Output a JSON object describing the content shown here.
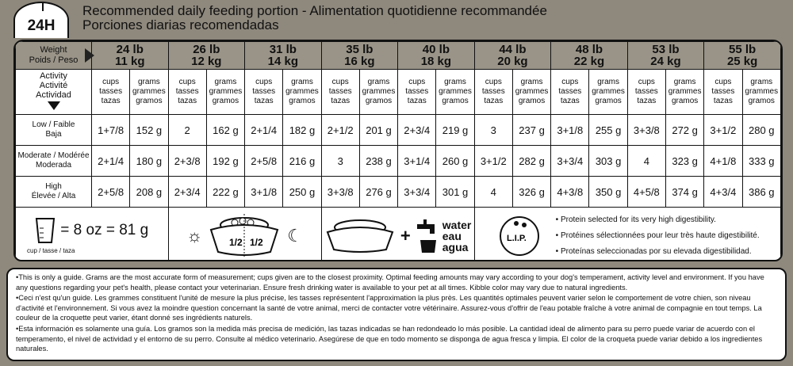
{
  "badge": "24H",
  "title": {
    "line1": "Recommended daily feeding portion - Alimentation quotidienne recommandée",
    "line2": "Porciones diarias recomendadas"
  },
  "weight_label": {
    "line1": "Weight",
    "line2": "Poids / Peso"
  },
  "weights": [
    {
      "lb": "24 lb",
      "kg": "11 kg"
    },
    {
      "lb": "26 lb",
      "kg": "12 kg"
    },
    {
      "lb": "31 lb",
      "kg": "14 kg"
    },
    {
      "lb": "35 lb",
      "kg": "16 kg"
    },
    {
      "lb": "40 lb",
      "kg": "18 kg"
    },
    {
      "lb": "44 lb",
      "kg": "20 kg"
    },
    {
      "lb": "48 lb",
      "kg": "22 kg"
    },
    {
      "lb": "53 lb",
      "kg": "24 kg"
    },
    {
      "lb": "55 lb",
      "kg": "25 kg"
    }
  ],
  "activity_label": {
    "l1": "Activity",
    "l2": "Activité",
    "l3": "Actividad"
  },
  "units": {
    "cups": [
      "cups",
      "tasses",
      "tazas"
    ],
    "grams": [
      "grams",
      "grammes",
      "gramos"
    ]
  },
  "rows": [
    {
      "l1": "Low / Faible",
      "l2": "Baja",
      "values": [
        [
          "1+7/8",
          "152 g"
        ],
        [
          "2",
          "162 g"
        ],
        [
          "2+1/4",
          "182 g"
        ],
        [
          "2+1/2",
          "201 g"
        ],
        [
          "2+3/4",
          "219 g"
        ],
        [
          "3",
          "237 g"
        ],
        [
          "3+1/8",
          "255 g"
        ],
        [
          "3+3/8",
          "272 g"
        ],
        [
          "3+1/2",
          "280 g"
        ]
      ]
    },
    {
      "l1": "Moderate / Modérée",
      "l2": "Moderada",
      "values": [
        [
          "2+1/4",
          "180 g"
        ],
        [
          "2+3/8",
          "192 g"
        ],
        [
          "2+5/8",
          "216 g"
        ],
        [
          "3",
          "238 g"
        ],
        [
          "3+1/4",
          "260 g"
        ],
        [
          "3+1/2",
          "282 g"
        ],
        [
          "3+3/4",
          "303 g"
        ],
        [
          "4",
          "323 g"
        ],
        [
          "4+1/8",
          "333 g"
        ]
      ]
    },
    {
      "l1": "High",
      "l2": "Élevée / Alta",
      "values": [
        [
          "2+5/8",
          "208 g"
        ],
        [
          "2+3/4",
          "222 g"
        ],
        [
          "3+1/8",
          "250 g"
        ],
        [
          "3+3/8",
          "276 g"
        ],
        [
          "3+3/4",
          "301 g"
        ],
        [
          "4",
          "326 g"
        ],
        [
          "4+3/8",
          "350 g"
        ],
        [
          "4+5/8",
          "374 g"
        ],
        [
          "4+3/4",
          "386 g"
        ]
      ]
    }
  ],
  "cup": {
    "equation": "= 8 oz = 81 g",
    "caption": "cup / tasse / taza"
  },
  "halves": [
    "1/2",
    "1/2"
  ],
  "water": [
    "water",
    "eau",
    "agua"
  ],
  "lip": {
    "logo": "L.I.P.",
    "bullets": [
      "Protein selected for its very high digestibility.",
      "Protéines sélectionnées pour leur très haute digestibilité.",
      "Proteínas seleccionadas por su elevada digestibilidad."
    ]
  },
  "notes": [
    "•This is only a guide. Grams are the most accurate form of measurement; cups given are to the closest proximity. Optimal feeding amounts may vary according to your dog's temperament, activity level and environment. If you have any questions regarding your pet's health, please contact your veterinarian. Ensure fresh drinking water is available to your pet at all times. Kibble color may vary due to natural ingredients.",
    "•Ceci n'est qu'un guide. Les grammes constituent l'unité de mesure la plus précise, les tasses représentent l'approximation la plus près. Les quantités optimales peuvent varier selon le comportement de votre chien, son niveau d'activité et l'environnement. Si vous avez la moindre question concernant la santé de votre animal, merci de contacter votre vétérinaire. Assurez-vous d'offrir de l'eau potable fraîche à votre animal de compagnie en tout temps. La couleur de la croquette peut varier, étant donné ses ingrédients naturels.",
    "•Esta información es solamente una guía. Los gramos son la medida más precisa de medición, las tazas indicadas se han redondeado lo más posible. La cantidad ideal de alimento para su perro puede variar de acuerdo con el temperamento, el nivel de actividad y el entorno de su perro. Consulte al médico veterinario. Asegúrese de que en todo momento se disponga de agua fresca y limpia. El color de la croqueta puede variar debido a los ingredientes naturales."
  ]
}
